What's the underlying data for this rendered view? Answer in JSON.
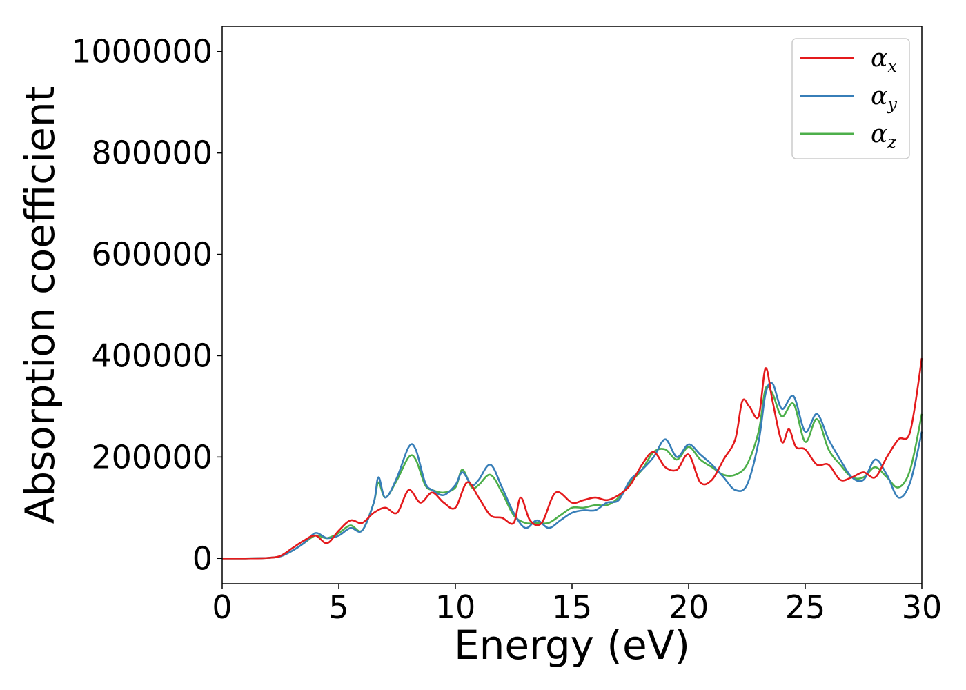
{
  "chart_data": {
    "type": "line",
    "xlabel": "Energy (eV)",
    "ylabel": "Absorption coefficient",
    "xlim": [
      0,
      30
    ],
    "ylim": [
      -50000,
      1050000
    ],
    "xticks": [
      0,
      5,
      10,
      15,
      20,
      25,
      30
    ],
    "xtick_labels": [
      "0",
      "5",
      "10",
      "15",
      "20",
      "25",
      "30"
    ],
    "yticks": [
      0,
      200000,
      400000,
      600000,
      800000,
      1000000
    ],
    "ytick_labels": [
      "0",
      "200000",
      "400000",
      "600000",
      "800000",
      "1000000"
    ],
    "grid": false,
    "legend_position": "top-right",
    "series": [
      {
        "name": "α_x",
        "legend_symbol": "α",
        "legend_sub": "x",
        "color": "#e41a1c",
        "points": [
          [
            0,
            0
          ],
          [
            1,
            0
          ],
          [
            2,
            1000
          ],
          [
            2.5,
            5000
          ],
          [
            3,
            20000
          ],
          [
            3.5,
            35000
          ],
          [
            4,
            45000
          ],
          [
            4.5,
            30000
          ],
          [
            5,
            55000
          ],
          [
            5.5,
            75000
          ],
          [
            6,
            70000
          ],
          [
            6.5,
            90000
          ],
          [
            7,
            100000
          ],
          [
            7.5,
            90000
          ],
          [
            8,
            135000
          ],
          [
            8.5,
            110000
          ],
          [
            9,
            130000
          ],
          [
            9.5,
            110000
          ],
          [
            10,
            100000
          ],
          [
            10.5,
            150000
          ],
          [
            11,
            120000
          ],
          [
            11.5,
            85000
          ],
          [
            12,
            80000
          ],
          [
            12.5,
            70000
          ],
          [
            12.8,
            120000
          ],
          [
            13.2,
            75000
          ],
          [
            13.7,
            70000
          ],
          [
            14.3,
            130000
          ],
          [
            15,
            110000
          ],
          [
            15.5,
            115000
          ],
          [
            16,
            120000
          ],
          [
            16.5,
            115000
          ],
          [
            17,
            125000
          ],
          [
            17.5,
            145000
          ],
          [
            18,
            185000
          ],
          [
            18.5,
            210000
          ],
          [
            19,
            180000
          ],
          [
            19.5,
            175000
          ],
          [
            20,
            205000
          ],
          [
            20.5,
            150000
          ],
          [
            21,
            155000
          ],
          [
            21.5,
            195000
          ],
          [
            22,
            235000
          ],
          [
            22.3,
            310000
          ],
          [
            22.6,
            300000
          ],
          [
            23,
            280000
          ],
          [
            23.3,
            375000
          ],
          [
            23.6,
            310000
          ],
          [
            24,
            230000
          ],
          [
            24.3,
            255000
          ],
          [
            24.6,
            220000
          ],
          [
            25,
            215000
          ],
          [
            25.5,
            185000
          ],
          [
            26,
            185000
          ],
          [
            26.5,
            155000
          ],
          [
            27,
            160000
          ],
          [
            27.5,
            170000
          ],
          [
            28,
            160000
          ],
          [
            28.5,
            200000
          ],
          [
            29,
            235000
          ],
          [
            29.5,
            250000
          ],
          [
            30,
            395000
          ]
        ]
      },
      {
        "name": "α_y",
        "legend_symbol": "α",
        "legend_sub": "y",
        "color": "#377eb8",
        "points": [
          [
            0,
            0
          ],
          [
            1,
            0
          ],
          [
            2,
            1000
          ],
          [
            2.5,
            4000
          ],
          [
            3,
            15000
          ],
          [
            3.5,
            30000
          ],
          [
            4,
            50000
          ],
          [
            4.5,
            40000
          ],
          [
            5,
            45000
          ],
          [
            5.5,
            60000
          ],
          [
            6,
            55000
          ],
          [
            6.5,
            110000
          ],
          [
            6.7,
            160000
          ],
          [
            7,
            120000
          ],
          [
            7.5,
            160000
          ],
          [
            8,
            220000
          ],
          [
            8.3,
            215000
          ],
          [
            8.7,
            150000
          ],
          [
            9,
            135000
          ],
          [
            9.5,
            125000
          ],
          [
            10,
            145000
          ],
          [
            10.3,
            170000
          ],
          [
            10.7,
            145000
          ],
          [
            11,
            155000
          ],
          [
            11.5,
            185000
          ],
          [
            12,
            140000
          ],
          [
            12.5,
            90000
          ],
          [
            13,
            60000
          ],
          [
            13.5,
            75000
          ],
          [
            14,
            60000
          ],
          [
            14.5,
            75000
          ],
          [
            15,
            90000
          ],
          [
            15.5,
            95000
          ],
          [
            16,
            95000
          ],
          [
            16.5,
            110000
          ],
          [
            17,
            115000
          ],
          [
            17.5,
            155000
          ],
          [
            18,
            175000
          ],
          [
            18.5,
            200000
          ],
          [
            19,
            235000
          ],
          [
            19.5,
            200000
          ],
          [
            20,
            225000
          ],
          [
            20.5,
            205000
          ],
          [
            21,
            185000
          ],
          [
            21.5,
            160000
          ],
          [
            22,
            135000
          ],
          [
            22.5,
            145000
          ],
          [
            23,
            230000
          ],
          [
            23.3,
            325000
          ],
          [
            23.6,
            345000
          ],
          [
            24,
            295000
          ],
          [
            24.5,
            320000
          ],
          [
            25,
            250000
          ],
          [
            25.5,
            285000
          ],
          [
            26,
            235000
          ],
          [
            26.5,
            195000
          ],
          [
            27,
            160000
          ],
          [
            27.5,
            155000
          ],
          [
            28,
            195000
          ],
          [
            28.5,
            165000
          ],
          [
            29,
            120000
          ],
          [
            29.5,
            150000
          ],
          [
            30,
            250000
          ]
        ]
      },
      {
        "name": "α_z",
        "legend_symbol": "α",
        "legend_sub": "z",
        "color": "#4daf4a",
        "points": [
          [
            0,
            0
          ],
          [
            1,
            0
          ],
          [
            2,
            1000
          ],
          [
            2.5,
            4000
          ],
          [
            3,
            15000
          ],
          [
            3.5,
            30000
          ],
          [
            4,
            45000
          ],
          [
            4.5,
            40000
          ],
          [
            5,
            50000
          ],
          [
            5.5,
            65000
          ],
          [
            6,
            55000
          ],
          [
            6.5,
            110000
          ],
          [
            6.7,
            150000
          ],
          [
            7,
            120000
          ],
          [
            7.5,
            155000
          ],
          [
            8,
            200000
          ],
          [
            8.3,
            195000
          ],
          [
            8.7,
            145000
          ],
          [
            9,
            135000
          ],
          [
            9.5,
            130000
          ],
          [
            10,
            140000
          ],
          [
            10.3,
            175000
          ],
          [
            10.7,
            140000
          ],
          [
            11,
            145000
          ],
          [
            11.5,
            165000
          ],
          [
            12,
            130000
          ],
          [
            12.5,
            85000
          ],
          [
            13,
            70000
          ],
          [
            13.5,
            70000
          ],
          [
            14,
            70000
          ],
          [
            14.5,
            85000
          ],
          [
            15,
            100000
          ],
          [
            15.5,
            100000
          ],
          [
            16,
            105000
          ],
          [
            16.5,
            105000
          ],
          [
            17,
            120000
          ],
          [
            17.5,
            150000
          ],
          [
            18,
            175000
          ],
          [
            18.5,
            210000
          ],
          [
            19,
            215000
          ],
          [
            19.5,
            195000
          ],
          [
            20,
            220000
          ],
          [
            20.5,
            195000
          ],
          [
            21,
            180000
          ],
          [
            21.5,
            165000
          ],
          [
            22,
            165000
          ],
          [
            22.5,
            185000
          ],
          [
            23,
            250000
          ],
          [
            23.3,
            335000
          ],
          [
            23.6,
            325000
          ],
          [
            24,
            280000
          ],
          [
            24.5,
            305000
          ],
          [
            25,
            230000
          ],
          [
            25.5,
            275000
          ],
          [
            26,
            215000
          ],
          [
            26.5,
            185000
          ],
          [
            27,
            160000
          ],
          [
            27.5,
            160000
          ],
          [
            28,
            180000
          ],
          [
            28.5,
            160000
          ],
          [
            29,
            140000
          ],
          [
            29.5,
            175000
          ],
          [
            30,
            285000
          ]
        ]
      }
    ]
  }
}
